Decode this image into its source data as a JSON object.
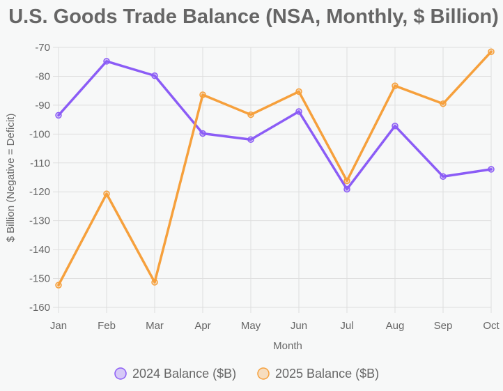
{
  "chart_data": {
    "type": "line",
    "title": "U.S. Goods Trade Balance (NSA, Monthly, $ Billion)",
    "xlabel": "Month",
    "ylabel": "$ Billion (Negative = Deficit)",
    "categories": [
      "Jan",
      "Feb",
      "Mar",
      "Apr",
      "May",
      "Jun",
      "Jul",
      "Aug",
      "Sep",
      "Oct"
    ],
    "ylim": [
      -160,
      -70
    ],
    "yticks": [
      -70,
      -80,
      -90,
      -100,
      -110,
      -120,
      -130,
      -140,
      -150,
      -160
    ],
    "grid": true,
    "legend_position": "bottom",
    "series": [
      {
        "name": "2024 Balance ($B)",
        "color": "#8b5cf6",
        "values": [
          -93.5,
          -74.8,
          -79.8,
          -99.8,
          -101.9,
          -92.2,
          -119.1,
          -97.2,
          -114.7,
          -112.2
        ]
      },
      {
        "name": "2025 Balance ($B)",
        "color": "#f6a03c",
        "values": [
          -152.3,
          -120.7,
          -151.3,
          -86.4,
          -93.3,
          -85.3,
          -116.2,
          -83.3,
          -89.5,
          -71.5
        ]
      }
    ]
  }
}
